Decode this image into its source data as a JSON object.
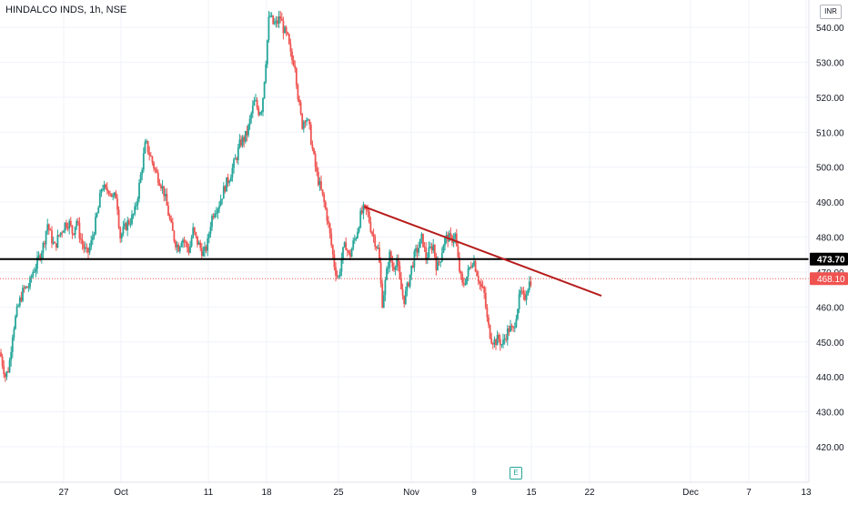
{
  "header": {
    "title": "HINDALCO INDS, 1h, NSE",
    "currency": "INR"
  },
  "earnings_marker": "E",
  "colors": {
    "up": "#26a69a",
    "down": "#ef5350",
    "trendline": "#b71c1c",
    "hline": "#000000",
    "grid": "#f0f3fa",
    "axis_text": "#131722"
  },
  "chart_data": {
    "type": "candlestick",
    "title": "HINDALCO INDS, 1h, NSE",
    "xlabel": "",
    "ylabel": "",
    "ylim": [
      412.5,
      544.5
    ],
    "y_ticks": [
      420,
      430,
      440,
      450,
      460,
      470,
      480,
      490,
      500,
      510,
      520,
      530,
      540
    ],
    "y_tick_labels": [
      "420.00",
      "430.00",
      "440.00",
      "450.00",
      "460.00",
      "470.00",
      "480.00",
      "490.00",
      "500.00",
      "510.00",
      "520.00",
      "530.00",
      "540.00"
    ],
    "x_ticks": [
      {
        "label": "27",
        "t": 70
      },
      {
        "label": "Oct",
        "t": 133
      },
      {
        "label": "11",
        "t": 229
      },
      {
        "label": "18",
        "t": 293
      },
      {
        "label": "25",
        "t": 372
      },
      {
        "label": "Nov",
        "t": 452
      },
      {
        "label": "9",
        "t": 521
      },
      {
        "label": "15",
        "t": 584
      },
      {
        "label": "22",
        "t": 648
      },
      {
        "label": "Dec",
        "t": 759
      },
      {
        "label": "7",
        "t": 823
      },
      {
        "label": "13",
        "t": 886
      }
    ],
    "horizontal_line": {
      "value": 473.7,
      "label": "473.70"
    },
    "last_price": {
      "value": 468.1,
      "label": "468.10"
    },
    "trendline": {
      "start": {
        "t": 400,
        "value": 488.7
      },
      "end": {
        "t": 661,
        "value": 463.2
      }
    },
    "ohlc_keypoints": [
      [
        0,
        447
      ],
      [
        6,
        440
      ],
      [
        10,
        443
      ],
      [
        14,
        453
      ],
      [
        18,
        458
      ],
      [
        22,
        462
      ],
      [
        26,
        465
      ],
      [
        32,
        466
      ],
      [
        36,
        470
      ],
      [
        40,
        472
      ],
      [
        44,
        475
      ],
      [
        48,
        478
      ],
      [
        52,
        484
      ],
      [
        56,
        480
      ],
      [
        60,
        477
      ],
      [
        64,
        480
      ],
      [
        68,
        482
      ],
      [
        72,
        484
      ],
      [
        76,
        484
      ],
      [
        80,
        481
      ],
      [
        84,
        485
      ],
      [
        88,
        480
      ],
      [
        92,
        477
      ],
      [
        96,
        475
      ],
      [
        100,
        478
      ],
      [
        104,
        483
      ],
      [
        108,
        488
      ],
      [
        112,
        495
      ],
      [
        116,
        493
      ],
      [
        120,
        494
      ],
      [
        124,
        491
      ],
      [
        128,
        492
      ],
      [
        132,
        480
      ],
      [
        136,
        482
      ],
      [
        140,
        484
      ],
      [
        144,
        485
      ],
      [
        148,
        487
      ],
      [
        152,
        493
      ],
      [
        156,
        500
      ],
      [
        160,
        507
      ],
      [
        164,
        504
      ],
      [
        168,
        501
      ],
      [
        172,
        498
      ],
      [
        176,
        496
      ],
      [
        180,
        493
      ],
      [
        184,
        488
      ],
      [
        188,
        483
      ],
      [
        192,
        479
      ],
      [
        196,
        477
      ],
      [
        200,
        480
      ],
      [
        204,
        478
      ],
      [
        208,
        476
      ],
      [
        212,
        482
      ],
      [
        216,
        479
      ],
      [
        220,
        477
      ],
      [
        224,
        475
      ],
      [
        228,
        478
      ],
      [
        232,
        485
      ],
      [
        236,
        488
      ],
      [
        240,
        489
      ],
      [
        244,
        492
      ],
      [
        248,
        495
      ],
      [
        252,
        497
      ],
      [
        256,
        500
      ],
      [
        260,
        503
      ],
      [
        264,
        507
      ],
      [
        268,
        508
      ],
      [
        272,
        510
      ],
      [
        276,
        515
      ],
      [
        280,
        519
      ],
      [
        284,
        516
      ],
      [
        288,
        517
      ],
      [
        292,
        530
      ],
      [
        296,
        544
      ],
      [
        300,
        541
      ],
      [
        304,
        541
      ],
      [
        308,
        543
      ],
      [
        312,
        539
      ],
      [
        316,
        537
      ],
      [
        320,
        531
      ],
      [
        324,
        530
      ],
      [
        328,
        519
      ],
      [
        332,
        512
      ],
      [
        336,
        515
      ],
      [
        340,
        511
      ],
      [
        344,
        504
      ],
      [
        348,
        498
      ],
      [
        352,
        494
      ],
      [
        356,
        490
      ],
      [
        360,
        485
      ],
      [
        364,
        478
      ],
      [
        368,
        471
      ],
      [
        372,
        468
      ],
      [
        376,
        475
      ],
      [
        380,
        478
      ],
      [
        384,
        474
      ],
      [
        388,
        478
      ],
      [
        392,
        481
      ],
      [
        396,
        486
      ],
      [
        400,
        488
      ],
      [
        404,
        487
      ],
      [
        408,
        482
      ],
      [
        412,
        479
      ],
      [
        416,
        476
      ],
      [
        420,
        461
      ],
      [
        424,
        468
      ],
      [
        428,
        475
      ],
      [
        432,
        471
      ],
      [
        436,
        474
      ],
      [
        440,
        466
      ],
      [
        444,
        462
      ],
      [
        448,
        466
      ],
      [
        452,
        471
      ],
      [
        456,
        475
      ],
      [
        460,
        477
      ],
      [
        464,
        480
      ],
      [
        468,
        474
      ],
      [
        472,
        476
      ],
      [
        476,
        478
      ],
      [
        480,
        471
      ],
      [
        484,
        474
      ],
      [
        488,
        479
      ],
      [
        492,
        480
      ],
      [
        496,
        479
      ],
      [
        500,
        481
      ],
      [
        504,
        472
      ],
      [
        508,
        466
      ],
      [
        512,
        468
      ],
      [
        516,
        471
      ],
      [
        520,
        474
      ],
      [
        524,
        470
      ],
      [
        528,
        466
      ],
      [
        532,
        464
      ],
      [
        536,
        455
      ],
      [
        540,
        451
      ],
      [
        544,
        450
      ],
      [
        548,
        451
      ],
      [
        552,
        449
      ],
      [
        556,
        452
      ],
      [
        560,
        454
      ],
      [
        564,
        453
      ],
      [
        568,
        459
      ],
      [
        572,
        464
      ],
      [
        576,
        462
      ],
      [
        580,
        466
      ],
      [
        584,
        468
      ]
    ]
  }
}
